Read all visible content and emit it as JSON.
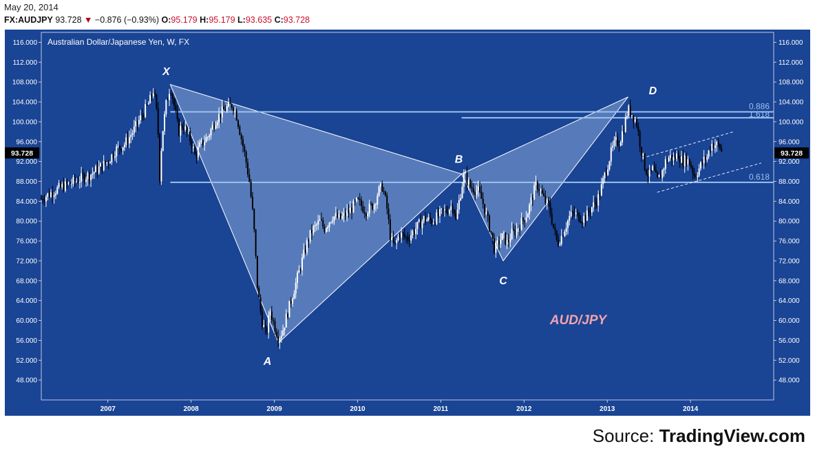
{
  "header": {
    "date": "May 20, 2014",
    "symbol": "FX:AUDJPY",
    "last": "93.728",
    "change": "−0.876 (−0.93%)",
    "open_label": "O:",
    "open": "95.179",
    "high_label": "H:",
    "high": "95.179",
    "low_label": "L:",
    "low": "93.635",
    "close_label": "C:",
    "close": "93.728"
  },
  "source": {
    "prefix": "Source: ",
    "brand": "TradingView.com"
  },
  "colors": {
    "background": "#1a4494",
    "up": "#ffffff",
    "down": "#000000",
    "pattern_fill": "#8aa9d8",
    "level_line": "#9cc2ee",
    "watermark": "#f4a3ad",
    "price_badge_bg": "#000000"
  },
  "chart_data": {
    "type": "candlestick",
    "title": "Australian Dollar/Japanese Yen, W, FX",
    "watermark": "AUD/JPY",
    "x_axis": {
      "type": "time",
      "range": [
        2006.2,
        2015.0
      ],
      "tick_labels": [
        "2007",
        "2008",
        "2009",
        "2010",
        "2011",
        "2012",
        "2013",
        "2014"
      ],
      "tick_values": [
        2007.0,
        2008.0,
        2009.0,
        2010.0,
        2011.0,
        2012.0,
        2013.0,
        2014.0
      ]
    },
    "y_axis": {
      "range": [
        44.0,
        118.0
      ],
      "tick_labels": [
        "48.000",
        "52.000",
        "56.000",
        "60.000",
        "64.000",
        "68.000",
        "72.000",
        "76.000",
        "80.000",
        "84.000",
        "88.000",
        "92.000",
        "96.000",
        "100.000",
        "104.000",
        "108.000",
        "112.000",
        "116.000"
      ],
      "tick_values": [
        48,
        52,
        56,
        60,
        64,
        68,
        72,
        76,
        80,
        84,
        88,
        92,
        96,
        100,
        104,
        108,
        112,
        116
      ],
      "last_price_label": "93.728",
      "last_price": 93.728
    },
    "price_path": [
      [
        2006.2,
        84.5
      ],
      [
        2006.4,
        86.5
      ],
      [
        2006.6,
        88.0
      ],
      [
        2006.8,
        89.5
      ],
      [
        2007.0,
        92.0
      ],
      [
        2007.1,
        94.5
      ],
      [
        2007.2,
        95.5
      ],
      [
        2007.3,
        98.0
      ],
      [
        2007.4,
        101.0
      ],
      [
        2007.5,
        104.0
      ],
      [
        2007.55,
        106.5
      ],
      [
        2007.6,
        100.0
      ],
      [
        2007.62,
        88.0
      ],
      [
        2007.65,
        97.0
      ],
      [
        2007.7,
        103.5
      ],
      [
        2007.75,
        107.3
      ],
      [
        2007.8,
        103.0
      ],
      [
        2007.85,
        98.0
      ],
      [
        2007.9,
        99.5
      ],
      [
        2008.0,
        96.0
      ],
      [
        2008.05,
        93.0
      ],
      [
        2008.1,
        95.0
      ],
      [
        2008.2,
        97.0
      ],
      [
        2008.3,
        100.5
      ],
      [
        2008.4,
        102.5
      ],
      [
        2008.5,
        103.5
      ],
      [
        2008.55,
        101.0
      ],
      [
        2008.6,
        97.0
      ],
      [
        2008.65,
        93.0
      ],
      [
        2008.7,
        88.0
      ],
      [
        2008.75,
        80.0
      ],
      [
        2008.8,
        66.0
      ],
      [
        2008.85,
        60.0
      ],
      [
        2008.9,
        57.0
      ],
      [
        2008.95,
        62.0
      ],
      [
        2009.0,
        59.0
      ],
      [
        2009.05,
        56.5
      ],
      [
        2009.1,
        58.0
      ],
      [
        2009.15,
        61.0
      ],
      [
        2009.2,
        64.0
      ],
      [
        2009.3,
        70.0
      ],
      [
        2009.35,
        73.0
      ],
      [
        2009.4,
        76.0
      ],
      [
        2009.45,
        78.0
      ],
      [
        2009.55,
        80.0
      ],
      [
        2009.6,
        78.5
      ],
      [
        2009.7,
        81.0
      ],
      [
        2009.8,
        80.5
      ],
      [
        2009.9,
        82.0
      ],
      [
        2010.0,
        84.0
      ],
      [
        2010.1,
        82.0
      ],
      [
        2010.2,
        83.5
      ],
      [
        2010.25,
        86.0
      ],
      [
        2010.3,
        87.0
      ],
      [
        2010.35,
        83.0
      ],
      [
        2010.4,
        76.0
      ],
      [
        2010.45,
        75.0
      ],
      [
        2010.5,
        77.5
      ],
      [
        2010.6,
        76.5
      ],
      [
        2010.7,
        78.5
      ],
      [
        2010.8,
        80.5
      ],
      [
        2010.9,
        80.0
      ],
      [
        2011.0,
        81.5
      ],
      [
        2011.1,
        82.5
      ],
      [
        2011.15,
        83.5
      ],
      [
        2011.18,
        80.0
      ],
      [
        2011.22,
        84.0
      ],
      [
        2011.28,
        89.5
      ],
      [
        2011.35,
        87.0
      ],
      [
        2011.45,
        86.0
      ],
      [
        2011.5,
        84.0
      ],
      [
        2011.55,
        81.0
      ],
      [
        2011.6,
        78.0
      ],
      [
        2011.65,
        74.0
      ],
      [
        2011.7,
        76.0
      ],
      [
        2011.75,
        77.0
      ],
      [
        2011.8,
        75.5
      ],
      [
        2011.85,
        77.5
      ],
      [
        2011.9,
        78.0
      ],
      [
        2012.0,
        80.5
      ],
      [
        2012.05,
        82.0
      ],
      [
        2012.1,
        85.0
      ],
      [
        2012.15,
        87.5
      ],
      [
        2012.2,
        86.0
      ],
      [
        2012.25,
        84.0
      ],
      [
        2012.3,
        83.0
      ],
      [
        2012.35,
        79.0
      ],
      [
        2012.4,
        75.5
      ],
      [
        2012.45,
        77.0
      ],
      [
        2012.5,
        79.0
      ],
      [
        2012.55,
        81.0
      ],
      [
        2012.6,
        81.5
      ],
      [
        2012.7,
        80.5
      ],
      [
        2012.75,
        81.0
      ],
      [
        2012.8,
        82.5
      ],
      [
        2012.85,
        83.5
      ],
      [
        2012.9,
        85.0
      ],
      [
        2012.95,
        88.0
      ],
      [
        2013.0,
        91.0
      ],
      [
        2013.05,
        94.0
      ],
      [
        2013.1,
        96.0
      ],
      [
        2013.15,
        96.0
      ],
      [
        2013.2,
        99.0
      ],
      [
        2013.25,
        102.5
      ],
      [
        2013.3,
        101.5
      ],
      [
        2013.35,
        100.0
      ],
      [
        2013.4,
        95.0
      ],
      [
        2013.45,
        91.0
      ],
      [
        2013.5,
        89.0
      ],
      [
        2013.55,
        90.5
      ],
      [
        2013.6,
        88.0
      ],
      [
        2013.65,
        89.5
      ],
      [
        2013.7,
        92.0
      ],
      [
        2013.75,
        93.0
      ],
      [
        2013.8,
        92.5
      ],
      [
        2013.85,
        93.5
      ],
      [
        2013.9,
        92.0
      ],
      [
        2013.95,
        92.5
      ],
      [
        2014.0,
        91.5
      ],
      [
        2014.05,
        89.0
      ],
      [
        2014.1,
        90.5
      ],
      [
        2014.15,
        92.0
      ],
      [
        2014.2,
        93.0
      ],
      [
        2014.25,
        95.5
      ],
      [
        2014.3,
        95.5
      ],
      [
        2014.35,
        95.0
      ],
      [
        2014.38,
        93.7
      ]
    ],
    "pattern_points": [
      {
        "label": "X",
        "x": 2007.75,
        "y": 107.5
      },
      {
        "label": "A",
        "x": 2009.05,
        "y": 55.5
      },
      {
        "label": "B",
        "x": 2011.25,
        "y": 89.5
      },
      {
        "label": "C",
        "x": 2011.75,
        "y": 72.0
      },
      {
        "label": "D",
        "x": 2013.25,
        "y": 105.0
      }
    ],
    "levels": [
      {
        "label": "0.886",
        "y": 102.0,
        "x_start": 2007.75
      },
      {
        "label": "1.618",
        "y": 100.8,
        "x_start": 2011.25
      },
      {
        "label": "0.618",
        "y": 87.8,
        "x_start": 2007.75
      }
    ],
    "channel": [
      {
        "from": [
          2013.42,
          92.7
        ],
        "to": [
          2014.52,
          98.0
        ]
      },
      {
        "from": [
          2013.6,
          85.8
        ],
        "to": [
          2014.85,
          91.7
        ]
      }
    ]
  }
}
